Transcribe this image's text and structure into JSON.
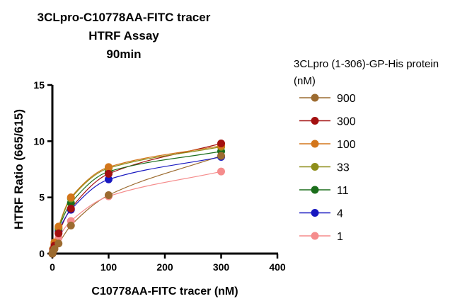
{
  "chart_data": {
    "type": "scatter",
    "title": [
      "3CLpro-C10778AA-FITC tracer",
      "HTRF Assay",
      "90min"
    ],
    "xlabel": "C10778AA-FITC tracer (nM)",
    "ylabel": "HTRF Ratio (665/615)",
    "xlim": [
      0,
      400
    ],
    "ylim": [
      0,
      15
    ],
    "xticks": [
      0,
      100,
      200,
      300,
      400
    ],
    "yticks": [
      0,
      5,
      10,
      15
    ],
    "grid": false,
    "legend_title": "3CLpro (1-306)-GP-His protein (nM)",
    "legend_title_lines": [
      "3CLpro (1-306)-GP-His protein",
      "(nM)"
    ],
    "legend_position": "right",
    "x": [
      0,
      1.2,
      3.7,
      11,
      33,
      100,
      300
    ],
    "series": [
      {
        "name": "900",
        "color": "#9C6B30",
        "values": [
          0,
          0.2,
          0.4,
          0.9,
          2.5,
          5.2,
          8.7
        ]
      },
      {
        "name": "300",
        "color": "#A31010",
        "values": [
          0,
          0.3,
          0.7,
          1.8,
          4.0,
          7.1,
          9.8
        ]
      },
      {
        "name": "100",
        "color": "#D3761B",
        "values": [
          0,
          0.4,
          1.0,
          2.4,
          5.0,
          7.7,
          9.6
        ]
      },
      {
        "name": "33",
        "color": "#8E8E1A",
        "values": [
          0,
          0.4,
          0.9,
          2.3,
          4.9,
          7.6,
          9.5
        ]
      },
      {
        "name": "11",
        "color": "#1B6E1B",
        "values": [
          0,
          0.4,
          0.9,
          2.2,
          4.5,
          7.3,
          9.1
        ]
      },
      {
        "name": "4",
        "color": "#1818C0",
        "values": [
          0,
          0.3,
          0.8,
          2.0,
          3.9,
          6.6,
          8.6
        ]
      },
      {
        "name": "1",
        "color": "#F58C8C",
        "values": [
          0,
          0.2,
          0.5,
          1.4,
          2.9,
          5.1,
          7.3
        ]
      }
    ]
  }
}
